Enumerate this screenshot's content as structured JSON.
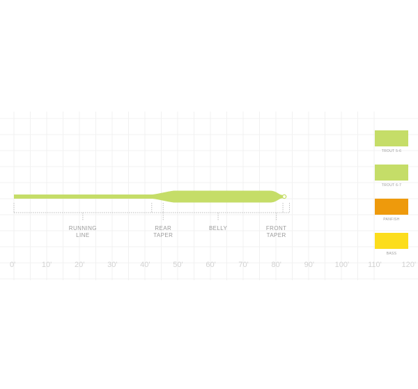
{
  "diagram": {
    "line_color": "#c5dd68",
    "axis": {
      "min": 0,
      "max": 120,
      "ticks": [
        "0'",
        "10'",
        "20'",
        "30'",
        "40'",
        "50'",
        "60'",
        "70'",
        "80'",
        "90'",
        "100'",
        "110'",
        "120'"
      ]
    },
    "taper": {
      "running_line_end_ft": 42,
      "rear_taper_end_ft": 49,
      "belly_end_ft": 78,
      "front_taper_end_ft": 82
    },
    "sections": [
      {
        "label_lines": [
          "RUNNING",
          "LINE"
        ],
        "start_ft": 0,
        "end_ft": 42
      },
      {
        "label_lines": [
          "REAR",
          "TAPER"
        ],
        "start_ft": 45.5,
        "end_ft": 45.5
      },
      {
        "label_lines": [
          "BELLY"
        ],
        "start_ft": 46.5,
        "end_ft": 78
      },
      {
        "label_lines": [
          "FRONT",
          "TAPER"
        ],
        "start_ft": 78,
        "end_ft": 82
      }
    ]
  },
  "legend": [
    {
      "label": "TROUT 5-6",
      "color": "#c5dd68"
    },
    {
      "label": "TROUT 6-7",
      "color": "#c5dd68"
    },
    {
      "label": "PANFISH",
      "color": "#ee9a0c"
    },
    {
      "label": "BASS",
      "color": "#fcdd1c"
    }
  ]
}
